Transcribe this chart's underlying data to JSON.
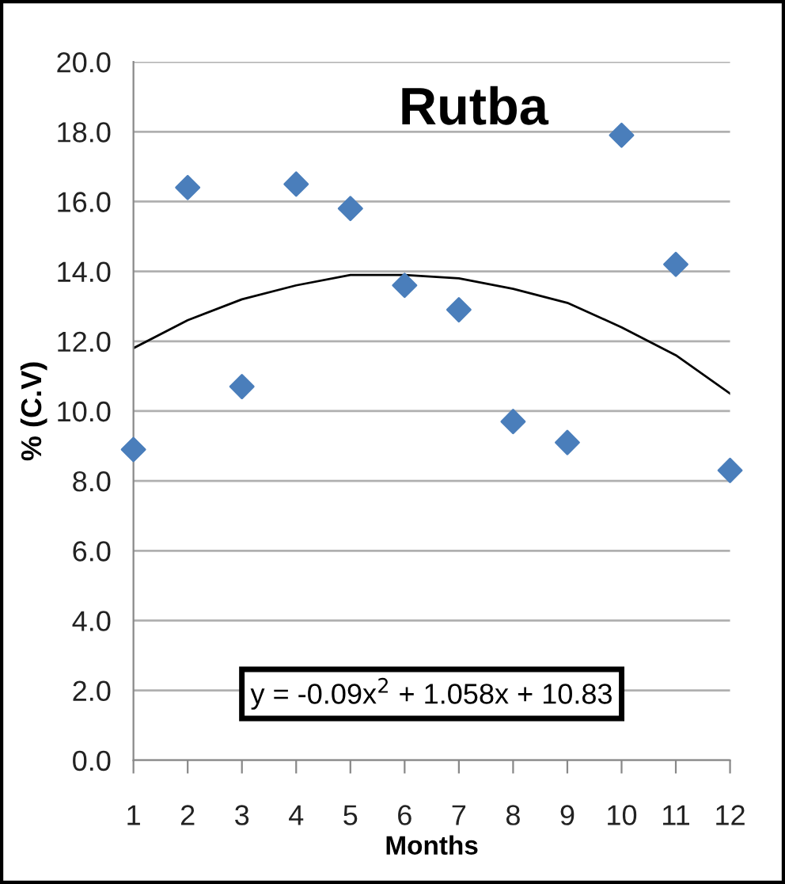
{
  "chart_data": {
    "type": "scatter",
    "title": "Rutba",
    "xlabel": "Months",
    "ylabel": "% (C.V)",
    "x": [
      1,
      2,
      3,
      4,
      5,
      6,
      7,
      8,
      9,
      10,
      11,
      12
    ],
    "series": [
      {
        "type": "scatter",
        "color": "#4a7ebb",
        "marker": "diamond",
        "values": [
          8.9,
          16.4,
          10.7,
          16.5,
          15.8,
          13.6,
          12.9,
          9.7,
          9.1,
          17.9,
          14.2,
          8.3
        ]
      },
      {
        "type": "line",
        "color": "#000000",
        "marker": "none",
        "line_style": "solid",
        "x": [
          1,
          2,
          3,
          4,
          5,
          6,
          7,
          8,
          9,
          10,
          11,
          12
        ],
        "values": [
          11.8,
          12.6,
          13.2,
          13.6,
          13.9,
          13.9,
          13.8,
          13.5,
          13.1,
          12.4,
          11.6,
          10.5
        ]
      }
    ],
    "xlim": [
      1,
      12
    ],
    "xticks": [
      1,
      2,
      3,
      4,
      5,
      6,
      7,
      8,
      9,
      10,
      11,
      12
    ],
    "ylim": [
      0,
      20
    ],
    "yticks": [
      {
        "value": 0,
        "label": "0.0"
      },
      {
        "value": 2,
        "label": "2.0"
      },
      {
        "value": 4,
        "label": "4.0"
      },
      {
        "value": 6,
        "label": "6.0"
      },
      {
        "value": 8,
        "label": "8.0"
      },
      {
        "value": 10,
        "label": "10.0"
      },
      {
        "value": 12,
        "label": "12.0"
      },
      {
        "value": 14,
        "label": "14.0"
      },
      {
        "value": 16,
        "label": "16.0"
      },
      {
        "value": 18,
        "label": "18.0"
      },
      {
        "value": 20,
        "label": "20.0"
      }
    ],
    "grid": "y",
    "annotations": [
      "y = -0.09x$^{2}$ + 1.058x + 10.83"
    ]
  }
}
